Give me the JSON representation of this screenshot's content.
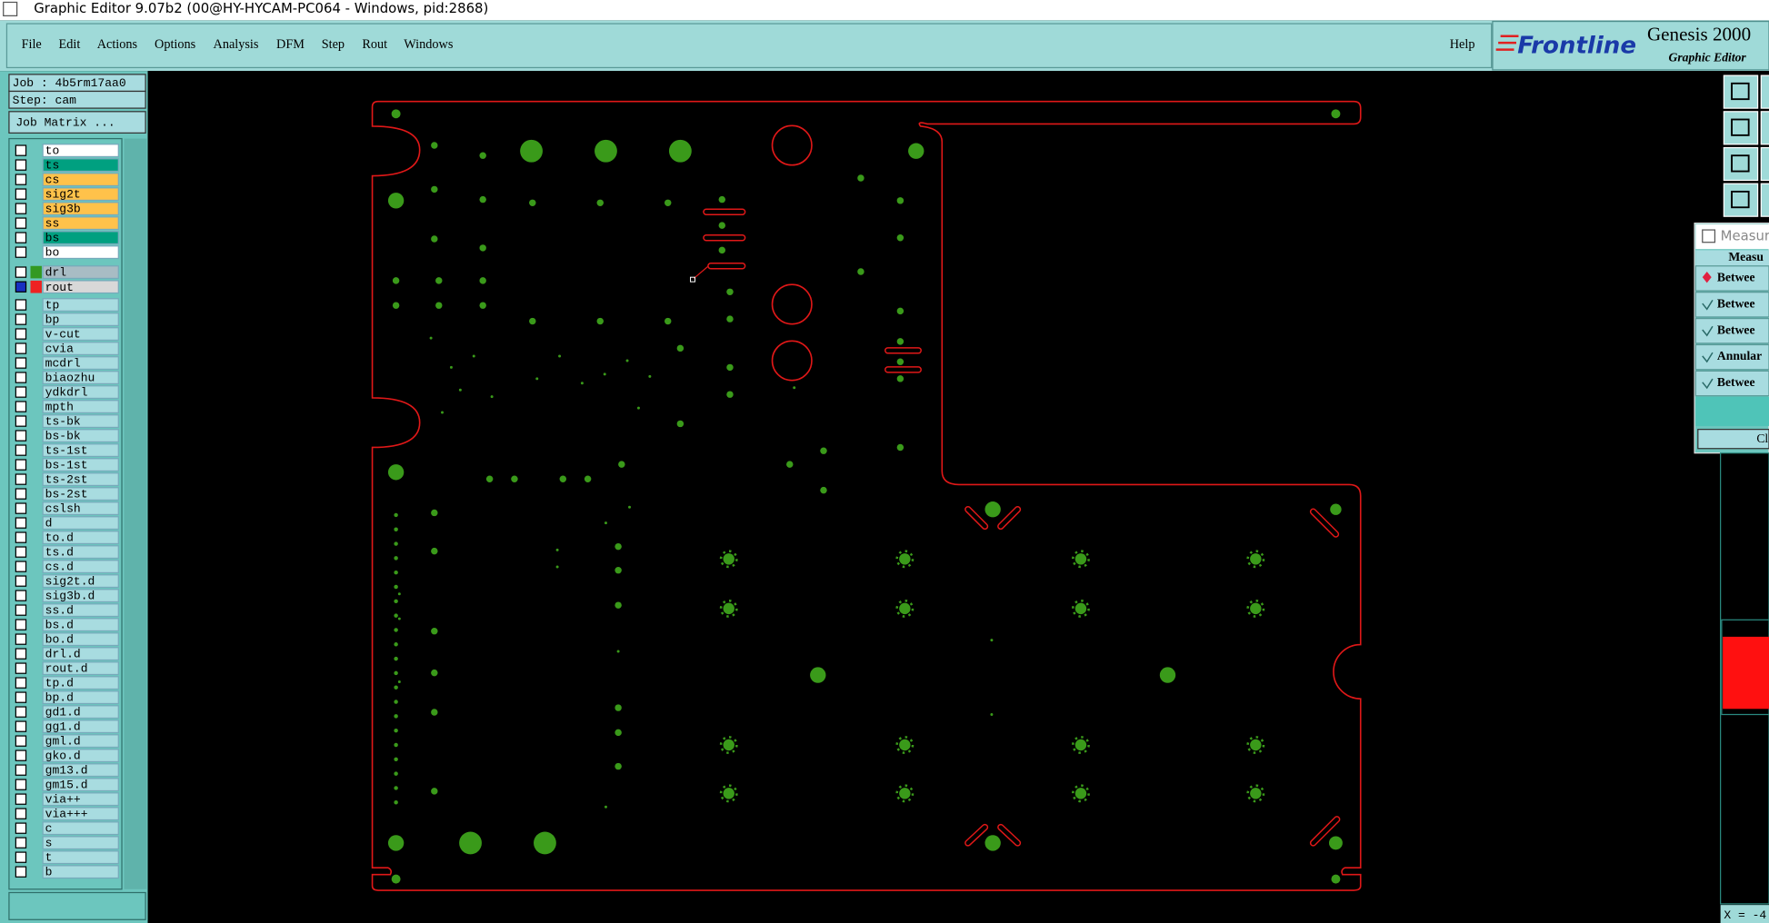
{
  "title_bar": "Graphic Editor 9.07b2 (00@HY-HYCAM-PC064 - Windows, pid:2868)",
  "menu": [
    "File",
    "Edit",
    "Actions",
    "Options",
    "Analysis",
    "DFM",
    "Step",
    "Rout",
    "Windows"
  ],
  "help": "Help",
  "logo": {
    "brand": "Frontline",
    "product": "Genesis 2000",
    "subtitle": "Graphic Editor"
  },
  "job": "Job : 4b5rm17aa0",
  "step": "Step: cam",
  "job_matrix": "Job Matrix ...",
  "layers": [
    {
      "name": "to",
      "color": "#ffffff"
    },
    {
      "name": "ts",
      "color": "#00a080"
    },
    {
      "name": "cs",
      "color": "#ffc24a"
    },
    {
      "name": "sig2t",
      "color": "#ffc24a"
    },
    {
      "name": "sig3b",
      "color": "#ffc24a"
    },
    {
      "name": "ss",
      "color": "#ffc24a"
    },
    {
      "name": "bs",
      "color": "#00a080"
    },
    {
      "name": "bo",
      "color": "#ffffff"
    },
    {
      "name": "drl",
      "color": "#a8bcc4",
      "swatch": "#339922"
    },
    {
      "name": "rout",
      "color": "#d8d8d8",
      "swatch": "#ee2222"
    },
    {
      "name": "tp",
      "color": "#a8dce0"
    },
    {
      "name": "bp",
      "color": "#a8dce0"
    },
    {
      "name": "v-cut",
      "color": "#a8dce0"
    },
    {
      "name": "cvia",
      "color": "#a8dce0"
    },
    {
      "name": "mcdrl",
      "color": "#a8dce0"
    },
    {
      "name": "biaozhu",
      "color": "#a8dce0"
    },
    {
      "name": "ydkdrl",
      "color": "#a8dce0"
    },
    {
      "name": "mpth",
      "color": "#a8dce0"
    },
    {
      "name": "ts-bk",
      "color": "#a8dce0"
    },
    {
      "name": "bs-bk",
      "color": "#a8dce0"
    },
    {
      "name": "ts-1st",
      "color": "#a8dce0"
    },
    {
      "name": "bs-1st",
      "color": "#a8dce0"
    },
    {
      "name": "ts-2st",
      "color": "#a8dce0"
    },
    {
      "name": "bs-2st",
      "color": "#a8dce0"
    },
    {
      "name": "cslsh",
      "color": "#a8dce0"
    },
    {
      "name": "d",
      "color": "#a8dce0"
    },
    {
      "name": "to.d",
      "color": "#a8dce0"
    },
    {
      "name": "ts.d",
      "color": "#a8dce0"
    },
    {
      "name": "cs.d",
      "color": "#a8dce0"
    },
    {
      "name": "sig2t.d",
      "color": "#a8dce0"
    },
    {
      "name": "sig3b.d",
      "color": "#a8dce0"
    },
    {
      "name": "ss.d",
      "color": "#a8dce0"
    },
    {
      "name": "bs.d",
      "color": "#a8dce0"
    },
    {
      "name": "bo.d",
      "color": "#a8dce0"
    },
    {
      "name": "drl.d",
      "color": "#a8dce0"
    },
    {
      "name": "rout.d",
      "color": "#a8dce0"
    },
    {
      "name": "tp.d",
      "color": "#a8dce0"
    },
    {
      "name": "bp.d",
      "color": "#a8dce0"
    },
    {
      "name": "gd1.d",
      "color": "#a8dce0"
    },
    {
      "name": "gg1.d",
      "color": "#a8dce0"
    },
    {
      "name": "gml.d",
      "color": "#a8dce0"
    },
    {
      "name": "gko.d",
      "color": "#a8dce0"
    },
    {
      "name": "gm13.d",
      "color": "#a8dce0"
    },
    {
      "name": "gm15.d",
      "color": "#a8dce0"
    },
    {
      "name": "via++",
      "color": "#a8dce0"
    },
    {
      "name": "via+++",
      "color": "#a8dce0"
    },
    {
      "name": "c",
      "color": "#a8dce0"
    },
    {
      "name": "s",
      "color": "#a8dce0"
    },
    {
      "name": "t",
      "color": "#a8dce0"
    },
    {
      "name": "b",
      "color": "#a8dce0"
    }
  ],
  "measure": {
    "title": "Measur",
    "header": "Measu",
    "options": [
      "Betwee",
      "Betwee",
      "Betwee",
      "Annular",
      "Betwee"
    ],
    "button": "Cl"
  },
  "status": "X = -4"
}
